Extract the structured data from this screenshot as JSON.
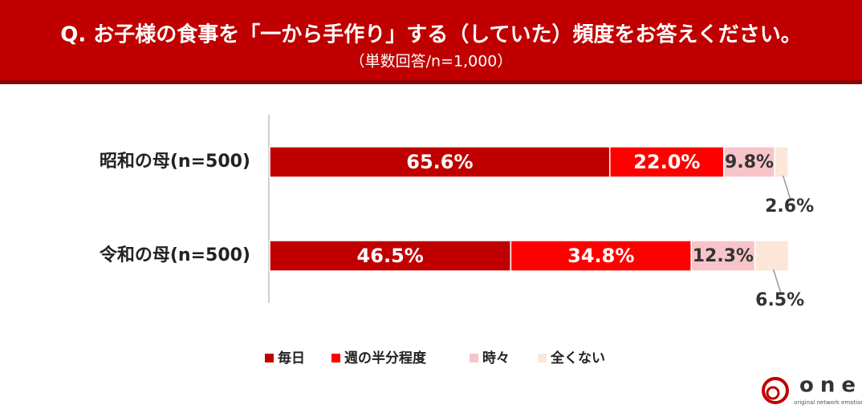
{
  "chart_data": {
    "type": "stacked-bar-horizontal",
    "title": "Q. お子様の食事を「一から手作り」する（していた）頻度をお答えください。",
    "subtitle": "（単数回答/n=1,000）",
    "categories": [
      "昭和の母(n=500)",
      "令和の母(n=500)"
    ],
    "series": [
      {
        "name": "毎日",
        "color": "#c00000",
        "values": [
          65.6,
          46.5
        ],
        "value_labels": [
          "65.6%",
          "46.5%"
        ]
      },
      {
        "name": "週の半分程度",
        "color": "#ff0000",
        "values": [
          22.0,
          34.8
        ],
        "value_labels": [
          "22.0%",
          "34.8%"
        ]
      },
      {
        "name": "時々",
        "color": "#f6c4c9",
        "values": [
          9.8,
          12.3
        ],
        "value_labels": [
          "9.8%",
          "12.3%"
        ]
      },
      {
        "name": "全くない",
        "color": "#fbe6d8",
        "values": [
          2.6,
          6.5
        ],
        "value_labels": [
          "2.6%",
          "6.5%"
        ]
      }
    ],
    "xlim": [
      0,
      100
    ]
  },
  "logo": {
    "name": "one",
    "tagline": "original network emotion"
  }
}
